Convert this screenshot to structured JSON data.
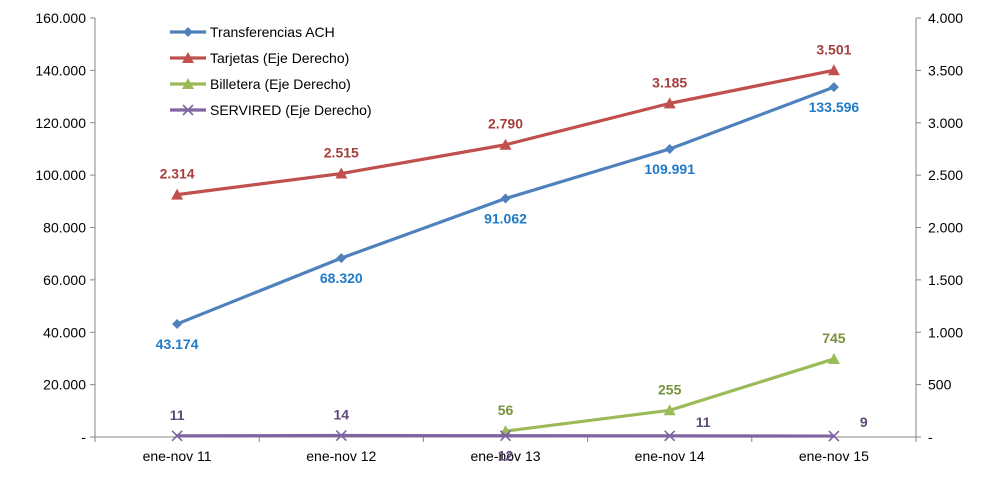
{
  "chart_data": {
    "type": "line",
    "categories": [
      "ene-nov 11",
      "ene-nov 12",
      "ene-nov 13",
      "ene-nov 14",
      "ene-nov 15"
    ],
    "y_left": {
      "min": 0,
      "max": 160000,
      "ticks": [
        0,
        20000,
        40000,
        60000,
        80000,
        100000,
        120000,
        140000,
        160000
      ],
      "tick_labels": [
        "-",
        "20.000",
        "40.000",
        "60.000",
        "80.000",
        "100.000",
        "120.000",
        "140.000",
        "160.000"
      ]
    },
    "y_right": {
      "min": 0,
      "max": 4000,
      "ticks": [
        0,
        500,
        1000,
        1500,
        2000,
        2500,
        3000,
        3500,
        4000
      ],
      "tick_labels": [
        "-",
        "500",
        "1.000",
        "1.500",
        "2.000",
        "2.500",
        "3.000",
        "3.500",
        "4.000"
      ]
    },
    "grid": false,
    "legend_position": "top-left",
    "series": [
      {
        "name": "Transferencias ACH",
        "axis": "left",
        "color": "#4F81BD",
        "label_color": "#1F7BC8",
        "marker": "diamond",
        "x": [
          "ene-nov 11",
          "ene-nov 12",
          "ene-nov 13",
          "ene-nov 14",
          "ene-nov 15"
        ],
        "values": [
          43174,
          68320,
          91062,
          109991,
          133596
        ],
        "labels": [
          "43.174",
          "68.320",
          "91.062",
          "109.991",
          "133.596"
        ],
        "label_position": "below"
      },
      {
        "name": "Tarjetas (Eje Derecho)",
        "axis": "right",
        "color": "#C0504D",
        "label_color": "#A5403D",
        "marker": "triangle",
        "x": [
          "ene-nov 11",
          "ene-nov 12",
          "ene-nov 13",
          "ene-nov 14",
          "ene-nov 15"
        ],
        "values": [
          2314,
          2515,
          2790,
          3185,
          3501
        ],
        "labels": [
          "2.314",
          "2.515",
          "2.790",
          "3.185",
          "3.501"
        ],
        "label_position": "above"
      },
      {
        "name": "Billetera (Eje Derecho)",
        "axis": "right",
        "color": "#9BBB59",
        "label_color": "#77933C",
        "marker": "triangle",
        "x": [
          "ene-nov 13",
          "ene-nov 14",
          "ene-nov 15"
        ],
        "values": [
          56,
          255,
          745
        ],
        "labels": [
          "56",
          "255",
          "745"
        ],
        "label_position": "above"
      },
      {
        "name": "SERVIRED (Eje Derecho)",
        "axis": "right",
        "color": "#8064A2",
        "label_color": "#60497A",
        "marker": "x",
        "x": [
          "ene-nov 11",
          "ene-nov 12",
          "ene-nov 13",
          "ene-nov 14",
          "ene-nov 15"
        ],
        "values": [
          11,
          14,
          12,
          11,
          9
        ],
        "labels": [
          "11",
          "14",
          "12",
          "11",
          "9"
        ],
        "label_positions": [
          "above",
          "above",
          "below",
          "right",
          "right"
        ]
      }
    ]
  }
}
